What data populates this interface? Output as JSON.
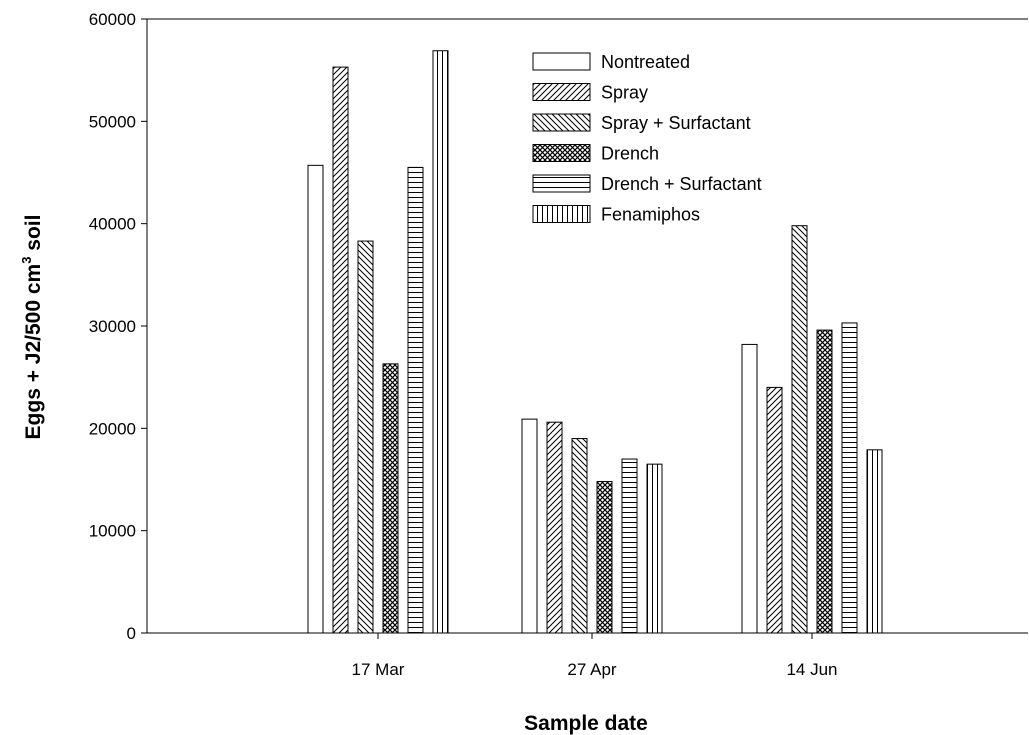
{
  "chart_data": {
    "type": "bar",
    "title": "",
    "xlabel": "Sample date",
    "ylabel": "Eggs + J2/500 cm",
    "ylabel_sup": "3",
    "ylabel_suffix": " soil",
    "categories": [
      "17 Mar",
      "27 Apr",
      "14 Jun"
    ],
    "ylim": [
      0,
      60000
    ],
    "yticks": [
      0,
      10000,
      20000,
      30000,
      40000,
      50000,
      60000
    ],
    "yticklabels": [
      "0",
      "10000",
      "20000",
      "30000",
      "40000",
      "50000",
      "60000"
    ],
    "legend_position": "top-center",
    "grid": false,
    "series": [
      {
        "name": "Nontreated",
        "pattern": "none",
        "values": [
          45700,
          20900,
          28200
        ]
      },
      {
        "name": "Spray",
        "pattern": "diag-right",
        "values": [
          55300,
          20600,
          24000
        ]
      },
      {
        "name": "Spray + Surfactant",
        "pattern": "diag-left",
        "values": [
          38300,
          19000,
          39800
        ]
      },
      {
        "name": "Drench",
        "pattern": "crosshatch",
        "values": [
          26300,
          14800,
          29600
        ]
      },
      {
        "name": "Drench + Surfactant",
        "pattern": "horizontal",
        "values": [
          45500,
          17000,
          30300
        ]
      },
      {
        "name": "Fenamiphos",
        "pattern": "vertical",
        "values": [
          56900,
          16500,
          17900
        ]
      }
    ]
  }
}
